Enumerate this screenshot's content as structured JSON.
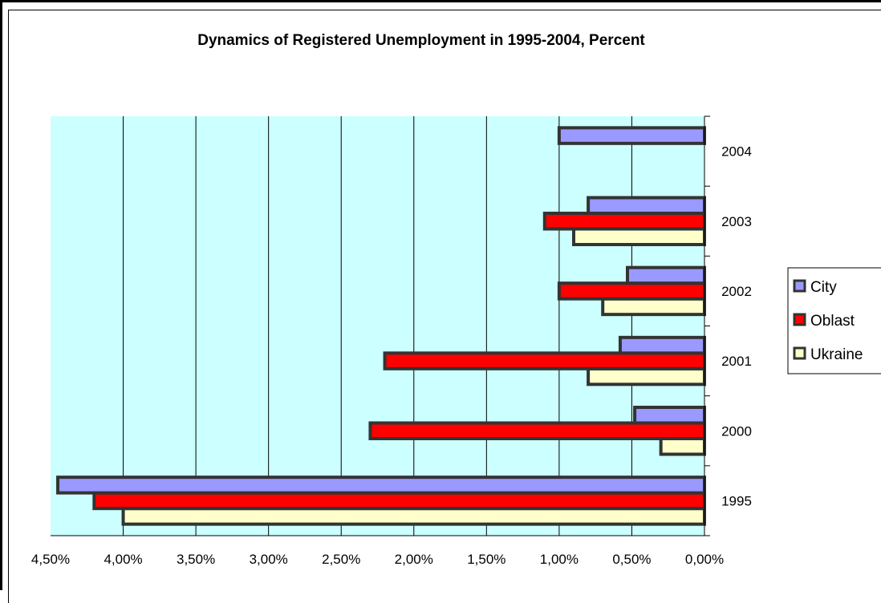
{
  "chart_data": {
    "type": "bar",
    "orientation": "horizontal",
    "title": "Dynamics of Registered Unemployment in 1995-2004, Percent",
    "categories": [
      "1995",
      "2000",
      "2001",
      "2002",
      "2003",
      "2004"
    ],
    "x_axis": {
      "reversed": true,
      "range": [
        0,
        4.5
      ],
      "ticks": [
        "0,00%",
        "0,50%",
        "1,00%",
        "1,50%",
        "2,00%",
        "2,50%",
        "3,00%",
        "3,50%",
        "4,00%",
        "4,50%"
      ]
    },
    "series": [
      {
        "name": "Ukraine",
        "color": "#FFFFCC",
        "values": [
          4.0,
          0.3,
          0.8,
          0.7,
          0.9,
          null
        ]
      },
      {
        "name": "Oblast",
        "color": "#FF0000",
        "values": [
          4.2,
          2.3,
          2.2,
          1.0,
          1.1,
          null
        ]
      },
      {
        "name": "City",
        "color": "#9999FF",
        "values": [
          4.45,
          0.48,
          0.58,
          0.53,
          0.8,
          1.0
        ]
      }
    ],
    "plot_background": "#CCFFFF",
    "grid": true,
    "legend_position": "right"
  }
}
